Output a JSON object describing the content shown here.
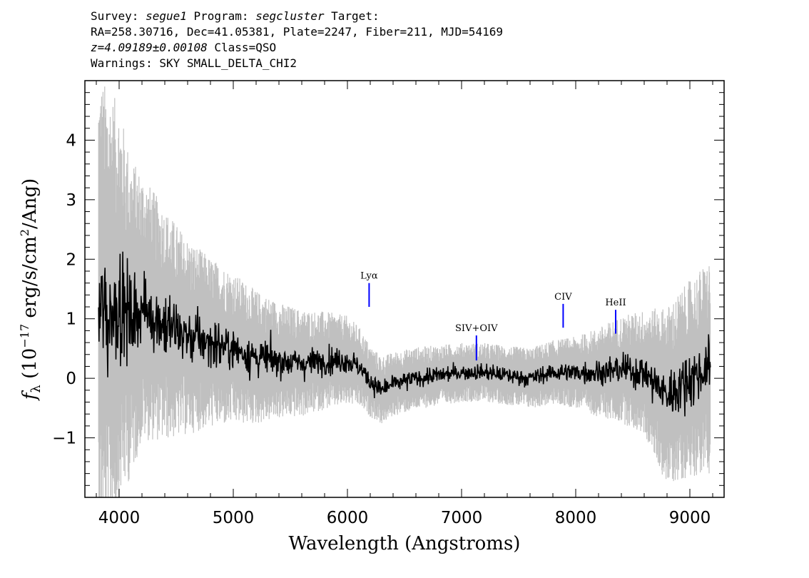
{
  "header": {
    "line1": {
      "survey_label": "Survey: ",
      "survey": "segue1",
      "program_label": " Program: ",
      "program": "segcluster",
      "target_label": " Target:"
    },
    "line2": "RA=258.30716, Dec=41.05381, Plate=2247, Fiber=211, MJD=54169",
    "line3": {
      "redshift": "z=4.09189±0.00108",
      "class": " Class=QSO"
    },
    "line4": "Warnings: SKY SMALL_DELTA_CHI2"
  },
  "chart_data": {
    "type": "line",
    "xlabel": "Wavelength (Angstroms)",
    "ylabel": "f_λ (10^-17 erg/s/cm^2/Ang)",
    "xlim": [
      3700,
      9300
    ],
    "ylim": [
      -2,
      5
    ],
    "x_ticks": [
      4000,
      5000,
      6000,
      7000,
      8000,
      9000
    ],
    "y_ticks": [
      -1,
      0,
      1,
      2,
      3,
      4
    ],
    "colors": {
      "flux": "#000000",
      "error": "#c0c0c0",
      "lines": "#0000ff"
    },
    "series": [
      {
        "x": [
          3820,
          3900,
          4000,
          4100,
          4200,
          4400,
          4600,
          4800,
          5000,
          5200,
          5400,
          5600,
          5800,
          6000,
          6100,
          6200,
          6300,
          6400,
          6600,
          6800,
          7000,
          7200,
          7400,
          7600,
          7800,
          8000,
          8200,
          8400,
          8600,
          8800,
          9000,
          9180
        ],
        "values": [
          1.2,
          1.0,
          1.3,
          1.0,
          1.2,
          0.9,
          0.7,
          0.6,
          0.5,
          0.35,
          0.3,
          0.25,
          0.3,
          0.3,
          0.2,
          -0.05,
          -0.2,
          -0.1,
          0.0,
          0.05,
          0.1,
          0.1,
          0.05,
          0.0,
          0.1,
          0.1,
          0.1,
          0.15,
          0.1,
          -0.3,
          0.0,
          0.2
        ]
      },
      {
        "x": [
          3820,
          3900,
          4000,
          4100,
          4200,
          4400,
          4600,
          4800,
          5000,
          5200,
          5400,
          5600,
          5800,
          6000,
          6100,
          6200,
          6300,
          6400,
          6600,
          6800,
          7000,
          7200,
          7400,
          7600,
          7800,
          8000,
          8200,
          8400,
          8600,
          8800,
          9000,
          9180
        ],
        "values": [
          2.6,
          2.6,
          2.2,
          1.8,
          1.5,
          1.3,
          1.1,
          0.95,
          0.85,
          0.75,
          0.65,
          0.6,
          0.55,
          0.5,
          0.45,
          0.4,
          0.38,
          0.36,
          0.35,
          0.34,
          0.33,
          0.33,
          0.33,
          0.34,
          0.36,
          0.4,
          0.5,
          0.6,
          0.7,
          1.0,
          1.1,
          1.2
        ]
      }
    ],
    "emission_lines": [
      {
        "label": "Lyα",
        "x": 6190,
        "y_low": 1.2,
        "y_high": 1.6
      },
      {
        "label": "SIV+OIV",
        "x": 7130,
        "y_low": 0.3,
        "y_high": 0.72
      },
      {
        "label": "CIV",
        "x": 7890,
        "y_low": 0.85,
        "y_high": 1.25
      },
      {
        "label": "HeII",
        "x": 8350,
        "y_low": 0.75,
        "y_high": 1.15
      }
    ]
  }
}
